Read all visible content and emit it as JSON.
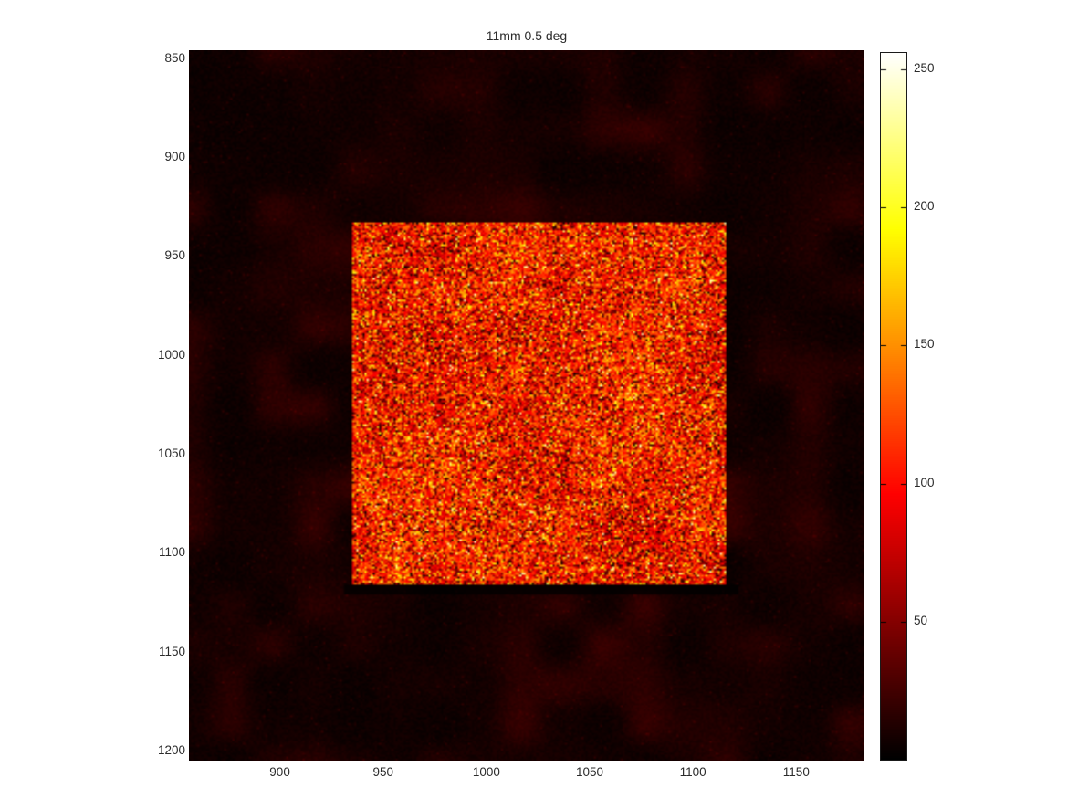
{
  "chart_data": {
    "type": "heatmap",
    "title": "11mm 0.5 deg",
    "xlabel": "",
    "ylabel": "",
    "colormap": "hot",
    "colormap_stops": [
      "#000000",
      "#aa0000",
      "#ff5500",
      "#ffcc00",
      "#ffffdd",
      "#ffffff"
    ],
    "grid": false,
    "x_ticks": [
      900,
      950,
      1000,
      1050,
      1100,
      1150
    ],
    "y_ticks": [
      850,
      900,
      950,
      1000,
      1050,
      1100,
      1150,
      1200
    ],
    "xlim": [
      856,
      1183
    ],
    "ylim": [
      846,
      1205
    ],
    "y_axis_direction": "down",
    "colorbar": {
      "position": "right",
      "ticks": [
        50,
        100,
        150,
        200,
        250
      ],
      "value_range": [
        0,
        256
      ]
    },
    "regions": {
      "background": {
        "description": "near-black granular noise field",
        "mean_value": 7,
        "value_range": [
          0,
          25
        ]
      },
      "bright_square": {
        "description": "noisy bright square target, red-orange with yellow and dark speckles",
        "x_range": [
          935,
          1116
        ],
        "y_range": [
          933,
          1116
        ],
        "mean_value": 105,
        "std_value": 36,
        "speckle_max": 240
      }
    }
  }
}
